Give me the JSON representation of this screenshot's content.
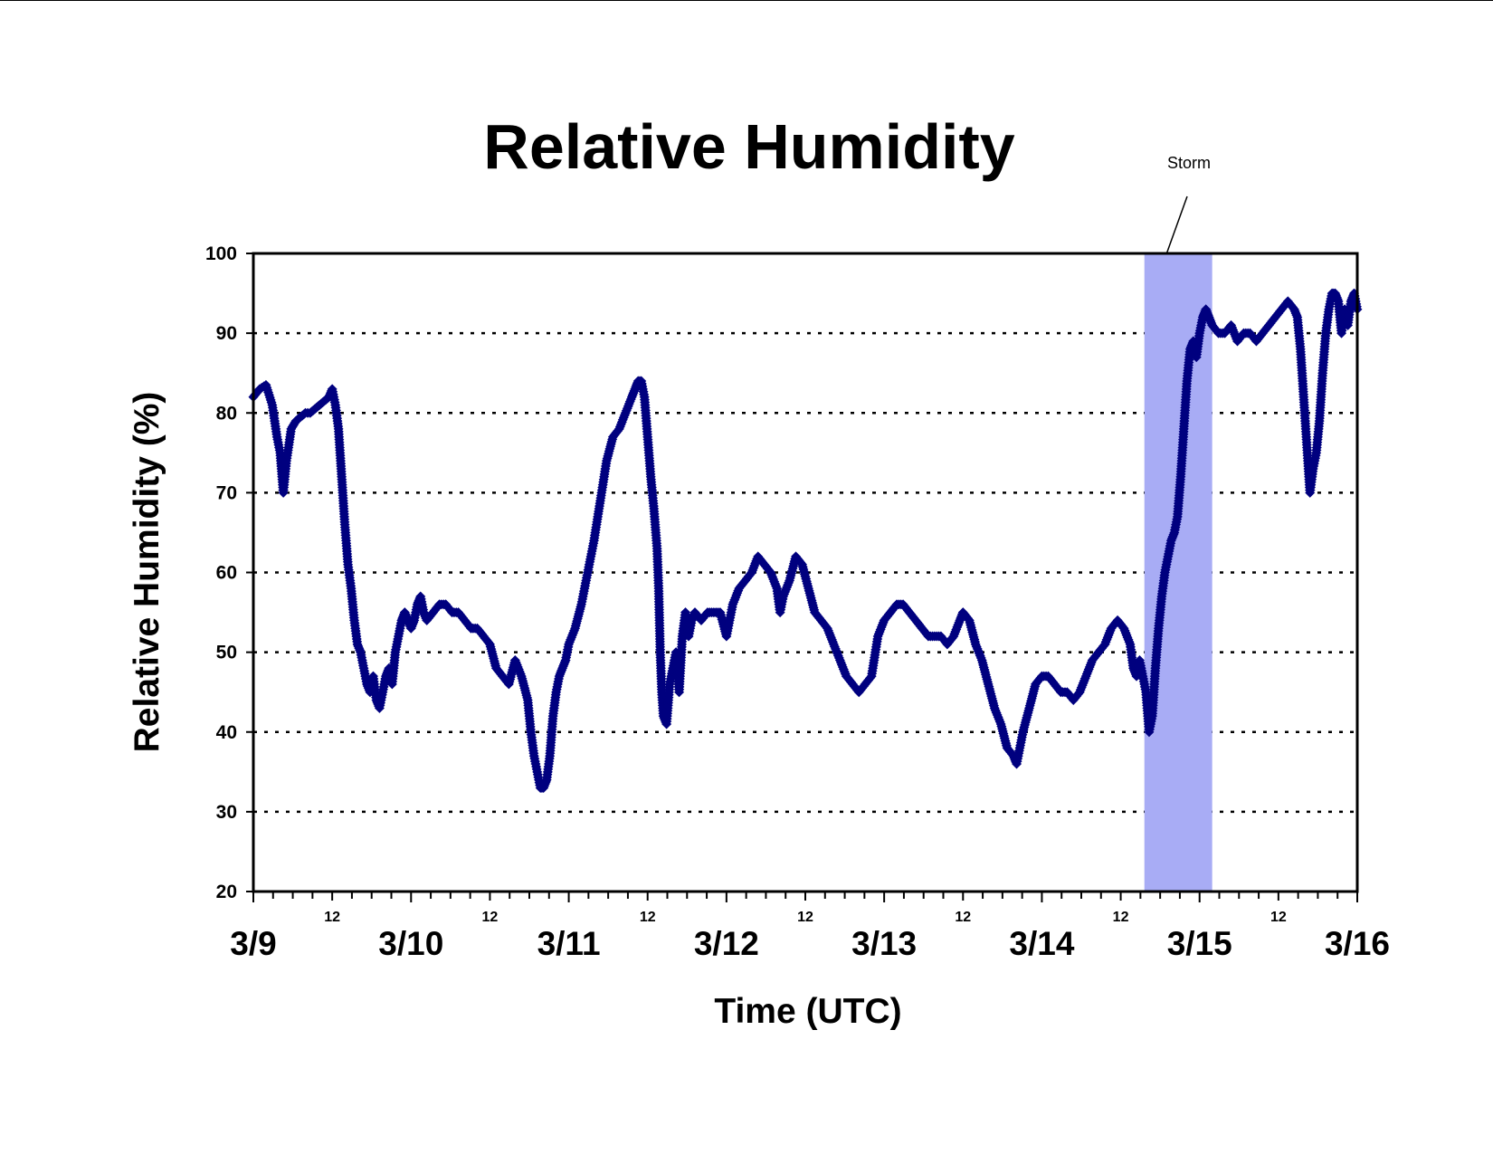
{
  "chart_data": {
    "type": "scatter",
    "title": "Relative Humidity",
    "xlabel": "Time (UTC)",
    "ylabel": "Relative Humidity (%)",
    "ylim": [
      20,
      100
    ],
    "xlim_days": [
      0,
      7
    ],
    "yticks": [
      "20",
      "30",
      "40",
      "50",
      "60",
      "70",
      "80",
      "90",
      "100"
    ],
    "date_ticks": [
      "3/9",
      "3/10",
      "3/11",
      "3/12",
      "3/13",
      "3/14",
      "3/15",
      "3/16"
    ],
    "noon_label": "12",
    "grid": "dotted horizontal",
    "marker": "diamond",
    "series_color": "#00007f",
    "shade_color": "#a8acf5",
    "annotation": {
      "text": "Storm",
      "shaded_range_days": [
        5.65,
        6.08
      ]
    },
    "series": [
      {
        "points": [
          [
            0.0,
            82
          ],
          [
            0.04,
            83
          ],
          [
            0.08,
            83.5
          ],
          [
            0.12,
            81
          ],
          [
            0.15,
            77
          ],
          [
            0.17,
            75
          ],
          [
            0.19,
            70
          ],
          [
            0.21,
            74
          ],
          [
            0.24,
            78
          ],
          [
            0.27,
            79
          ],
          [
            0.3,
            79.5
          ],
          [
            0.33,
            80
          ],
          [
            0.36,
            80
          ],
          [
            0.39,
            80.5
          ],
          [
            0.42,
            81
          ],
          [
            0.45,
            81.5
          ],
          [
            0.48,
            82
          ],
          [
            0.5,
            83
          ],
          [
            0.52,
            81
          ],
          [
            0.54,
            78
          ],
          [
            0.56,
            72
          ],
          [
            0.58,
            66
          ],
          [
            0.6,
            61
          ],
          [
            0.62,
            58
          ],
          [
            0.64,
            54
          ],
          [
            0.66,
            51
          ],
          [
            0.68,
            50
          ],
          [
            0.7,
            48
          ],
          [
            0.72,
            46
          ],
          [
            0.74,
            45
          ],
          [
            0.76,
            47
          ],
          [
            0.78,
            44
          ],
          [
            0.8,
            43
          ],
          [
            0.82,
            45
          ],
          [
            0.84,
            47
          ],
          [
            0.86,
            48
          ],
          [
            0.88,
            46
          ],
          [
            0.9,
            50
          ],
          [
            0.92,
            52
          ],
          [
            0.94,
            54
          ],
          [
            0.96,
            55
          ],
          [
            0.98,
            54
          ],
          [
            1.0,
            53
          ],
          [
            1.02,
            54
          ],
          [
            1.04,
            56
          ],
          [
            1.06,
            57
          ],
          [
            1.08,
            55
          ],
          [
            1.1,
            54
          ],
          [
            1.14,
            55
          ],
          [
            1.18,
            56
          ],
          [
            1.22,
            56
          ],
          [
            1.26,
            55
          ],
          [
            1.3,
            55
          ],
          [
            1.34,
            54
          ],
          [
            1.38,
            53
          ],
          [
            1.42,
            53
          ],
          [
            1.46,
            52
          ],
          [
            1.5,
            51
          ],
          [
            1.54,
            48
          ],
          [
            1.58,
            47
          ],
          [
            1.62,
            46
          ],
          [
            1.66,
            49
          ],
          [
            1.7,
            47
          ],
          [
            1.74,
            44
          ],
          [
            1.76,
            40
          ],
          [
            1.78,
            37
          ],
          [
            1.8,
            35
          ],
          [
            1.82,
            33
          ],
          [
            1.84,
            33
          ],
          [
            1.86,
            34
          ],
          [
            1.88,
            37
          ],
          [
            1.9,
            42
          ],
          [
            1.92,
            45
          ],
          [
            1.94,
            47
          ],
          [
            1.96,
            48
          ],
          [
            1.98,
            49
          ],
          [
            2.0,
            51
          ],
          [
            2.04,
            53
          ],
          [
            2.08,
            56
          ],
          [
            2.12,
            60
          ],
          [
            2.16,
            64
          ],
          [
            2.2,
            69
          ],
          [
            2.24,
            74
          ],
          [
            2.28,
            77
          ],
          [
            2.32,
            78
          ],
          [
            2.36,
            80
          ],
          [
            2.4,
            82
          ],
          [
            2.42,
            83
          ],
          [
            2.44,
            84
          ],
          [
            2.46,
            84
          ],
          [
            2.48,
            82
          ],
          [
            2.5,
            77
          ],
          [
            2.52,
            72
          ],
          [
            2.54,
            68
          ],
          [
            2.56,
            63
          ],
          [
            2.57,
            58
          ],
          [
            2.58,
            50
          ],
          [
            2.59,
            45
          ],
          [
            2.6,
            42
          ],
          [
            2.62,
            41
          ],
          [
            2.64,
            46
          ],
          [
            2.66,
            48
          ],
          [
            2.68,
            50
          ],
          [
            2.7,
            45
          ],
          [
            2.72,
            52
          ],
          [
            2.74,
            55
          ],
          [
            2.76,
            52
          ],
          [
            2.78,
            54
          ],
          [
            2.8,
            55
          ],
          [
            2.84,
            54
          ],
          [
            2.88,
            55
          ],
          [
            2.92,
            55
          ],
          [
            2.96,
            55
          ],
          [
            3.0,
            52
          ],
          [
            3.04,
            56
          ],
          [
            3.08,
            58
          ],
          [
            3.12,
            59
          ],
          [
            3.16,
            60
          ],
          [
            3.2,
            62
          ],
          [
            3.24,
            61
          ],
          [
            3.28,
            60
          ],
          [
            3.32,
            58
          ],
          [
            3.34,
            55
          ],
          [
            3.36,
            57
          ],
          [
            3.4,
            59
          ],
          [
            3.44,
            62
          ],
          [
            3.48,
            61
          ],
          [
            3.52,
            58
          ],
          [
            3.56,
            55
          ],
          [
            3.6,
            54
          ],
          [
            3.64,
            53
          ],
          [
            3.68,
            51
          ],
          [
            3.72,
            49
          ],
          [
            3.76,
            47
          ],
          [
            3.8,
            46
          ],
          [
            3.84,
            45
          ],
          [
            3.88,
            46
          ],
          [
            3.92,
            47
          ],
          [
            3.96,
            52
          ],
          [
            4.0,
            54
          ],
          [
            4.04,
            55
          ],
          [
            4.08,
            56
          ],
          [
            4.12,
            56
          ],
          [
            4.16,
            55
          ],
          [
            4.2,
            54
          ],
          [
            4.24,
            53
          ],
          [
            4.28,
            52
          ],
          [
            4.32,
            52
          ],
          [
            4.36,
            52
          ],
          [
            4.4,
            51
          ],
          [
            4.44,
            52
          ],
          [
            4.48,
            54
          ],
          [
            4.5,
            55
          ],
          [
            4.54,
            54
          ],
          [
            4.58,
            51
          ],
          [
            4.62,
            49
          ],
          [
            4.66,
            46
          ],
          [
            4.7,
            43
          ],
          [
            4.74,
            41
          ],
          [
            4.78,
            38
          ],
          [
            4.82,
            37
          ],
          [
            4.84,
            36
          ],
          [
            4.86,
            38
          ],
          [
            4.88,
            40
          ],
          [
            4.92,
            43
          ],
          [
            4.96,
            46
          ],
          [
            5.0,
            47
          ],
          [
            5.04,
            47
          ],
          [
            5.08,
            46
          ],
          [
            5.12,
            45
          ],
          [
            5.16,
            45
          ],
          [
            5.2,
            44
          ],
          [
            5.24,
            45
          ],
          [
            5.28,
            47
          ],
          [
            5.32,
            49
          ],
          [
            5.36,
            50
          ],
          [
            5.4,
            51
          ],
          [
            5.44,
            53
          ],
          [
            5.48,
            54
          ],
          [
            5.52,
            53
          ],
          [
            5.56,
            51
          ],
          [
            5.58,
            48
          ],
          [
            5.6,
            47
          ],
          [
            5.62,
            49
          ],
          [
            5.64,
            47
          ],
          [
            5.66,
            45
          ],
          [
            5.68,
            40
          ],
          [
            5.7,
            42
          ],
          [
            5.72,
            48
          ],
          [
            5.74,
            53
          ],
          [
            5.76,
            57
          ],
          [
            5.78,
            60
          ],
          [
            5.8,
            62
          ],
          [
            5.82,
            64
          ],
          [
            5.84,
            65
          ],
          [
            5.86,
            67
          ],
          [
            5.88,
            72
          ],
          [
            5.9,
            78
          ],
          [
            5.92,
            84
          ],
          [
            5.94,
            88
          ],
          [
            5.96,
            89
          ],
          [
            5.98,
            87
          ],
          [
            6.0,
            90
          ],
          [
            6.02,
            92
          ],
          [
            6.04,
            93
          ],
          [
            6.06,
            92
          ],
          [
            6.08,
            91
          ],
          [
            6.12,
            90
          ],
          [
            6.16,
            90
          ],
          [
            6.2,
            91
          ],
          [
            6.24,
            89
          ],
          [
            6.28,
            90
          ],
          [
            6.32,
            90
          ],
          [
            6.36,
            89
          ],
          [
            6.4,
            90
          ],
          [
            6.44,
            91
          ],
          [
            6.48,
            92
          ],
          [
            6.52,
            93
          ],
          [
            6.56,
            94
          ],
          [
            6.6,
            93
          ],
          [
            6.62,
            92
          ],
          [
            6.64,
            88
          ],
          [
            6.66,
            82
          ],
          [
            6.68,
            76
          ],
          [
            6.7,
            70
          ],
          [
            6.72,
            73
          ],
          [
            6.74,
            75
          ],
          [
            6.76,
            79
          ],
          [
            6.78,
            85
          ],
          [
            6.8,
            90
          ],
          [
            6.82,
            93
          ],
          [
            6.84,
            95
          ],
          [
            6.86,
            95
          ],
          [
            6.88,
            94
          ],
          [
            6.9,
            90
          ],
          [
            6.92,
            93
          ],
          [
            6.94,
            91
          ],
          [
            6.96,
            94
          ],
          [
            6.98,
            95
          ],
          [
            7.0,
            93
          ]
        ]
      }
    ]
  }
}
